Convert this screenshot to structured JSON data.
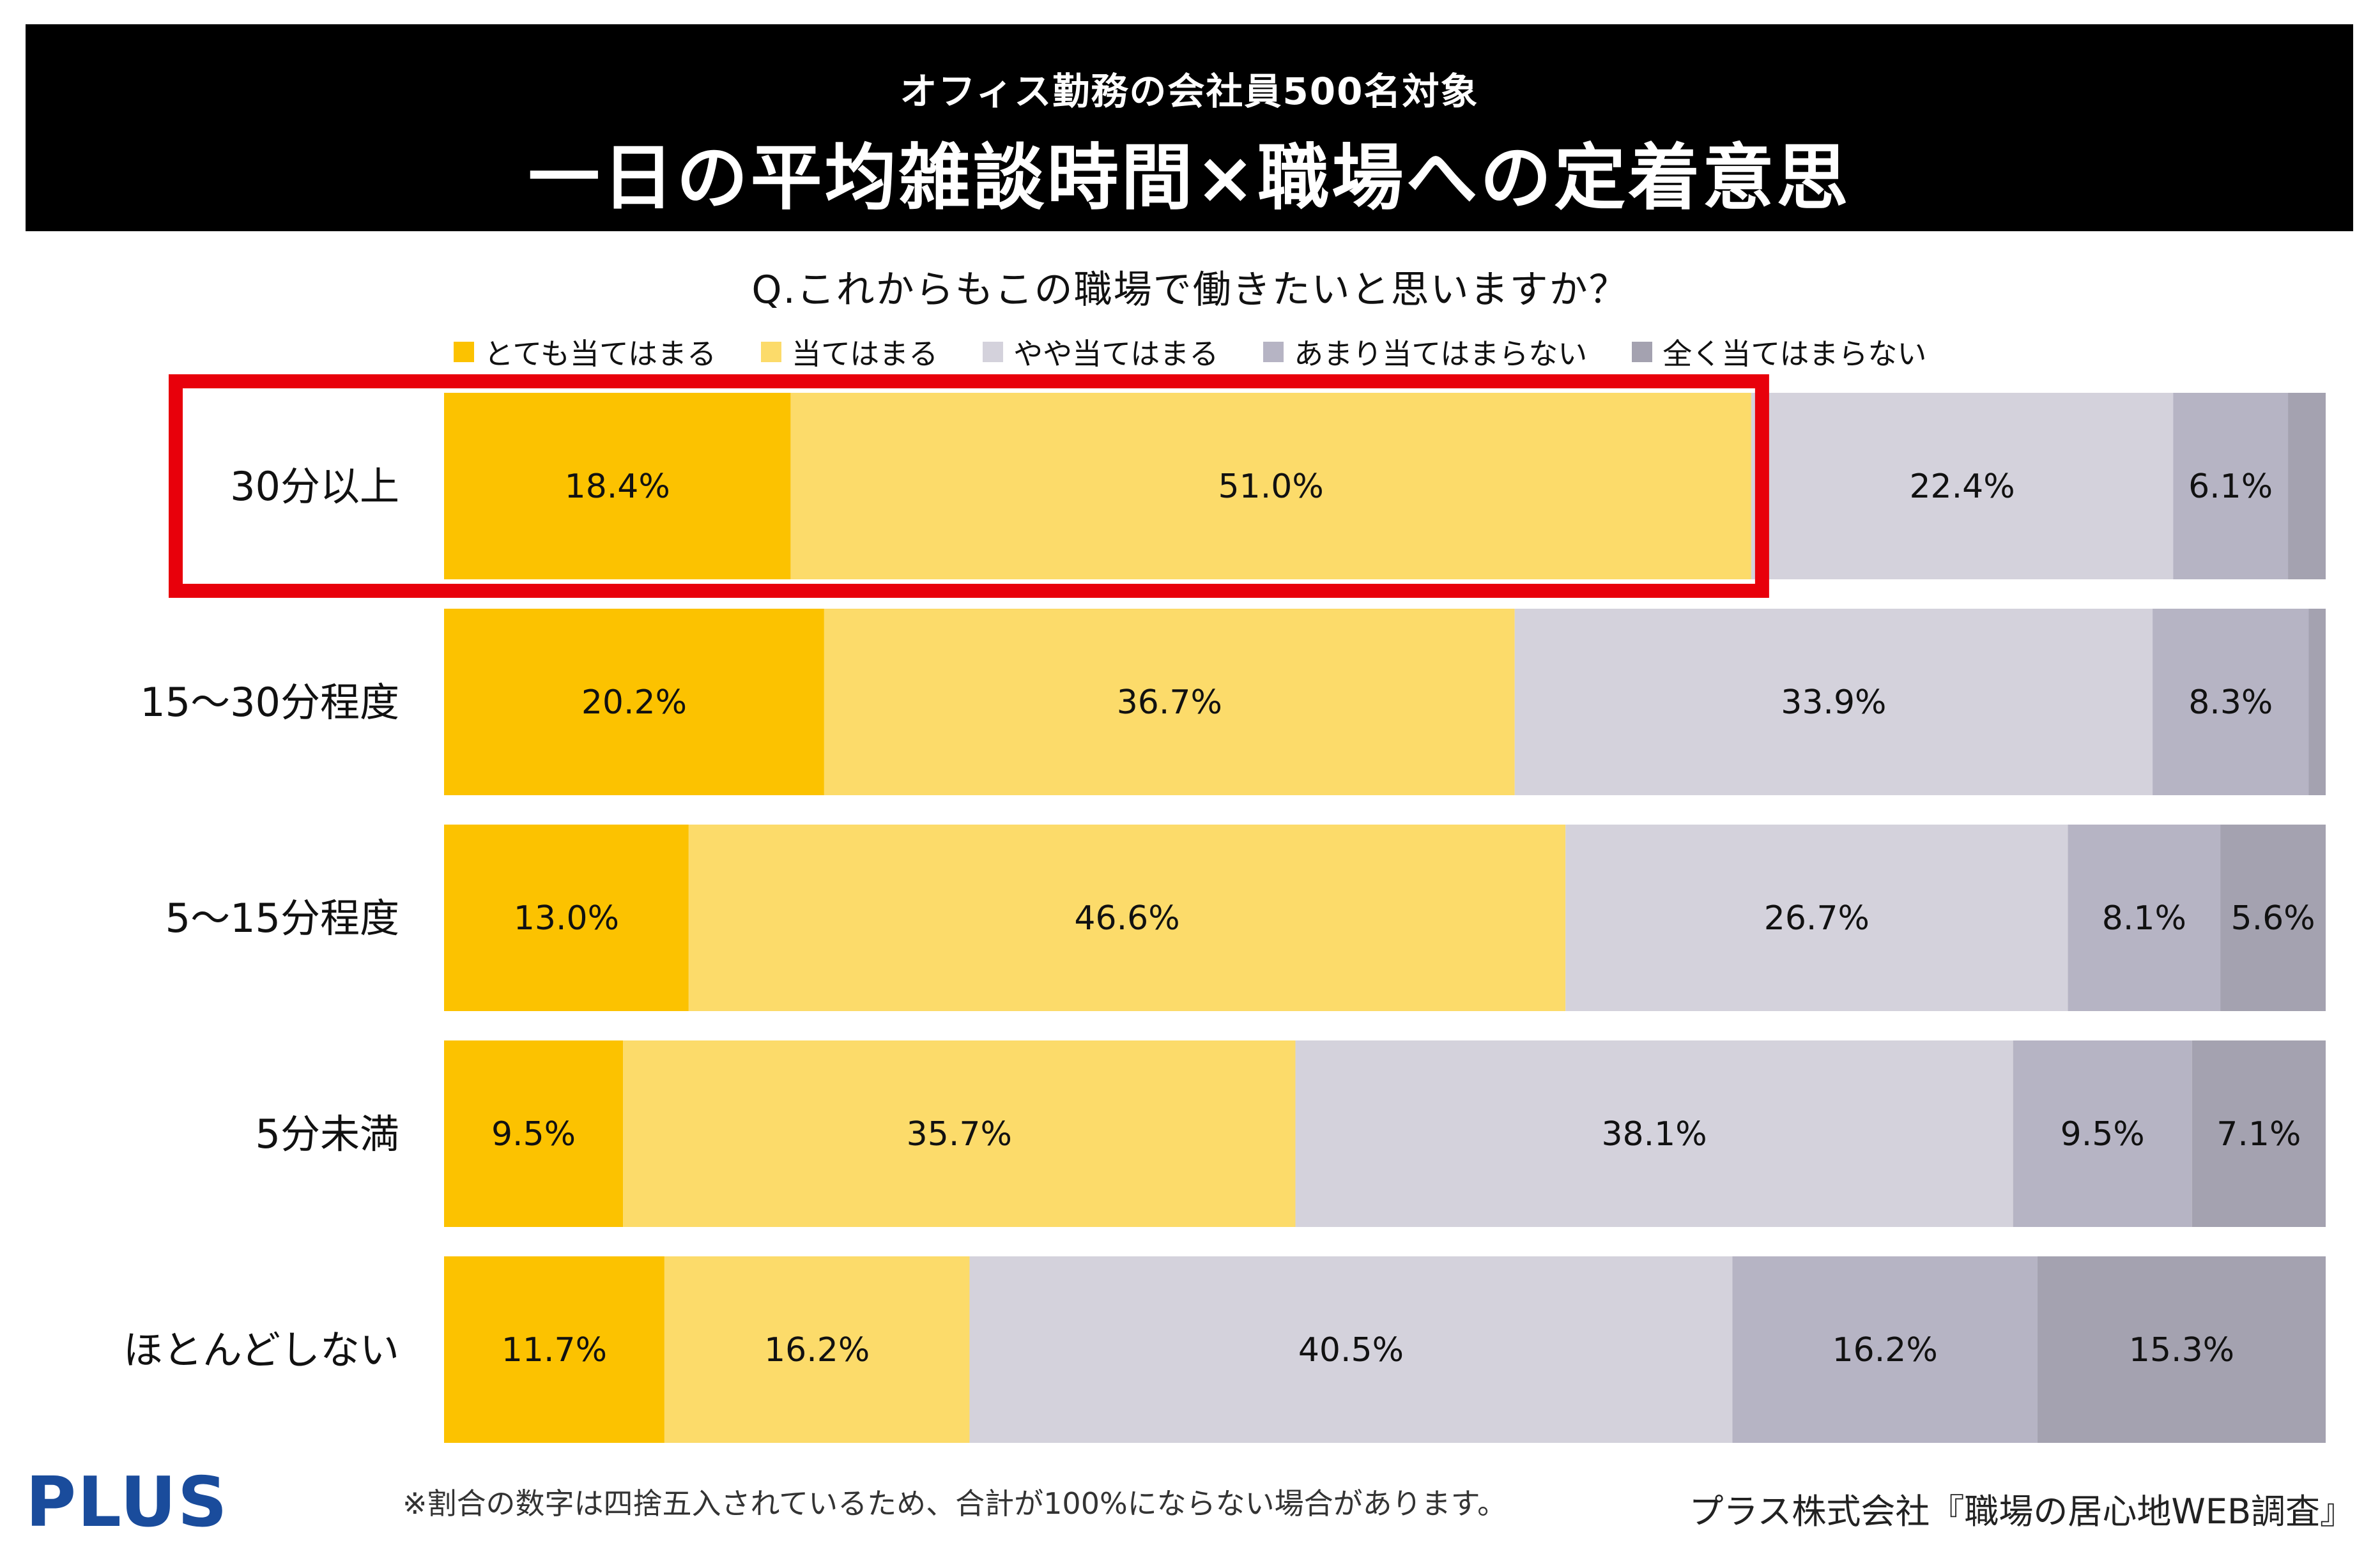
{
  "header": {
    "subtitle": "オフィス勤務の会社員500名対象",
    "title": "一日の平均雑談時間×職場への定着意思"
  },
  "question": "Q.これからもこの職場で働きたいと思いますか？",
  "colors": {
    "very_agree": "#FCC200",
    "agree": "#FCDB6A",
    "somewhat": "#D4D2DC",
    "not_really": "#B6B4C4",
    "not_at_all": "#A4A2B0",
    "highlight": "#E8000B"
  },
  "chart_data": {
    "type": "bar",
    "orientation": "horizontal",
    "stacked": true,
    "normalized": true,
    "categories": [
      "30分以上",
      "15〜30分程度",
      "5〜15分程度",
      "5分未満",
      "ほとんどしない"
    ],
    "series": [
      {
        "name": "とても当てはまる",
        "values": [
          18.4,
          20.2,
          13.0,
          9.5,
          11.7
        ],
        "labels": [
          "18.4%",
          "20.2%",
          "13.0%",
          "9.5%",
          "11.7%"
        ]
      },
      {
        "name": "当てはまる",
        "values": [
          51.0,
          36.7,
          46.6,
          35.7,
          16.2
        ],
        "labels": [
          "51.0%",
          "36.7%",
          "46.6%",
          "35.7%",
          "16.2%"
        ]
      },
      {
        "name": "やや当てはまる",
        "values": [
          22.4,
          33.9,
          26.7,
          38.1,
          40.5
        ],
        "labels": [
          "22.4%",
          "33.9%",
          "26.7%",
          "38.1%",
          "40.5%"
        ]
      },
      {
        "name": "あまり当てはまらない",
        "values": [
          6.1,
          8.3,
          8.1,
          9.5,
          16.2
        ],
        "labels": [
          "6.1%",
          "8.3%",
          "8.1%",
          "9.5%",
          "16.2%"
        ]
      },
      {
        "name": "全く当てはまらない",
        "values": [
          2.0,
          0.9,
          5.6,
          7.1,
          15.3
        ],
        "labels": [
          "",
          "",
          "5.6%",
          "7.1%",
          "15.3%"
        ]
      }
    ],
    "highlight_row": 0,
    "highlight_series": [
      0,
      1
    ],
    "legend_position": "top",
    "xlim": [
      0,
      100
    ]
  },
  "footer": {
    "logo": "PLUS",
    "note": "※割合の数字は四捨五入されているため、合計が100%にならない場合があります。",
    "source": "プラス株式会社『職場の居心地WEB調査』"
  }
}
